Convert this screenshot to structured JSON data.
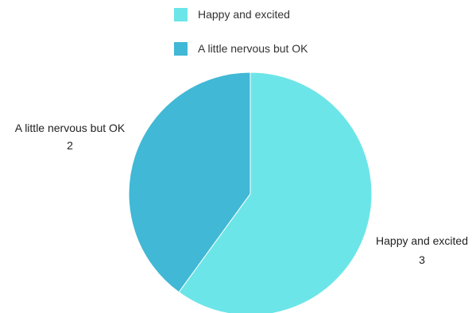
{
  "chart_data": {
    "type": "pie",
    "categories": [
      "Happy and excited",
      "A little nervous but OK"
    ],
    "values": [
      3,
      2
    ],
    "colors": [
      "#6ce5e8",
      "#41b8d5"
    ],
    "legend_position": "top",
    "title": ""
  },
  "legend": {
    "items": [
      {
        "label": "Happy and excited",
        "color": "#6ce5e8"
      },
      {
        "label": "A little nervous but OK",
        "color": "#41b8d5"
      }
    ]
  },
  "labels": [
    {
      "name": "Happy and excited",
      "value": "3"
    },
    {
      "name": "A little nervous but OK",
      "value": "2"
    }
  ]
}
